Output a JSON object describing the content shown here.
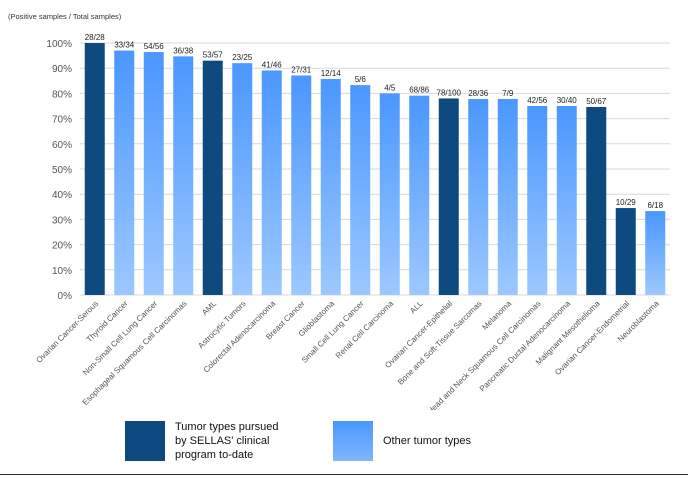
{
  "chart_data": {
    "type": "bar",
    "title": "(Positive samples / Total samples)",
    "xlabel": "",
    "ylabel": "",
    "ylim": [
      0,
      100
    ],
    "yticks": [
      "0%",
      "10%",
      "20%",
      "30%",
      "40%",
      "50%",
      "60%",
      "70%",
      "80%",
      "90%",
      "100%"
    ],
    "categories": [
      "Ovarian Cancer-Serous",
      "Thyroid Cancer",
      "Non-Small Cell Lung Cancer",
      "Esophageal Squamous Cell Carcinomas",
      "AML",
      "Astrocytic Tumors",
      "Colorectal Adenocarcinoma",
      "Breast Cancer",
      "Glioblastoma",
      "Small Cell Lung Cancer",
      "Renal Cell Carcinoma",
      "ALL",
      "Ovarian Cancer-Epithelial",
      "Bone and Soft-Tissue Sarcomas",
      "Melanoma",
      "Head and Neck Squamous Cell Carcinomas",
      "Pancreatic Ductal Adenocarcinoma",
      "Malignant Mesothelioma",
      "Ovarian Cancer-Endometrial",
      "Neuroblastoma"
    ],
    "values": [
      100,
      97,
      96.4,
      94.7,
      93,
      92,
      89.1,
      87.1,
      85.7,
      83.3,
      80,
      79.1,
      78,
      77.8,
      77.8,
      75,
      75,
      74.6,
      34.5,
      33.3
    ],
    "data_labels": [
      "28/28",
      "33/34",
      "54/56",
      "36/38",
      "53/57",
      "23/25",
      "41/46",
      "27/31",
      "12/14",
      "5/6",
      "4/5",
      "68/86",
      "78/100",
      "28/36",
      "7/9",
      "42/56",
      "30/40",
      "50/67",
      "10/29",
      "6/18"
    ],
    "group": [
      "pursued",
      "other",
      "other",
      "other",
      "pursued",
      "other",
      "other",
      "other",
      "other",
      "other",
      "other",
      "other",
      "pursued",
      "other",
      "other",
      "other",
      "other",
      "pursued",
      "pursued",
      "other"
    ],
    "series": [
      {
        "name": "Tumor types pursued by SELLAS' clinical program to-date",
        "key": "pursued",
        "color": "#0d4a80"
      },
      {
        "name": "Other tumor types",
        "key": "other",
        "color": "#4f9eff"
      }
    ]
  },
  "legend": {
    "pursued_label": "Tumor types pursued\nby SELLAS' clinical\nprogram to-date",
    "other_label": "Other tumor types"
  },
  "colors": {
    "pursued": "#0d4a80",
    "other_top": "#4a97ff",
    "other_bottom": "#9cc8ff",
    "grid": "#d9d9d9",
    "tick_text": "#555555"
  }
}
